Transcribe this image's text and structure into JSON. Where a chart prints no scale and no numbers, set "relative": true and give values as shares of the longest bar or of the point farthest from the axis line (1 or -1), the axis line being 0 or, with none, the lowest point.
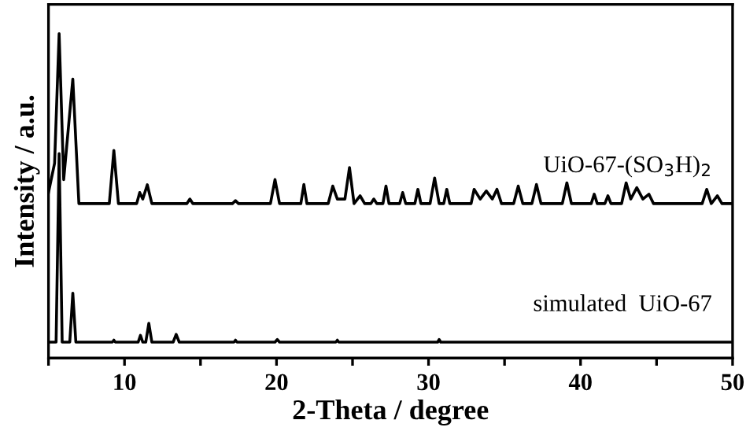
{
  "chart_data": {
    "type": "line",
    "relative": true,
    "xlabel": "2-Theta / degree",
    "ylabel": "Intensity / a.u.",
    "xlim": [
      5,
      50
    ],
    "xticks": [
      {
        "value": 5,
        "label": null
      },
      10,
      {
        "value": 15,
        "label": null
      },
      20,
      {
        "value": 25,
        "label": null
      },
      30,
      {
        "value": 35,
        "label": null
      },
      40,
      {
        "value": 45,
        "label": null
      },
      50
    ],
    "tick_labels": "x",
    "grid": false,
    "legend": false,
    "marker": "none",
    "line_style": "solid",
    "series": [
      {
        "name": "UiO-67-(SO$_{3}$H)$_{2}$",
        "color": "#000000",
        "x": [
          5,
          5.4,
          5.7,
          6.0,
          6.6,
          7.0,
          9.0,
          9.3,
          9.6,
          10.8,
          11.0,
          11.2,
          11.5,
          11.8,
          14.1,
          14.3,
          14.5,
          17.1,
          17.3,
          17.5,
          19.6,
          19.9,
          20.2,
          21.6,
          21.8,
          22.0,
          23.4,
          23.7,
          24.0,
          24.5,
          24.8,
          25.1,
          25.5,
          25.8,
          26.2,
          26.4,
          26.6,
          27.0,
          27.2,
          27.4,
          28.1,
          28.3,
          28.5,
          29.1,
          29.3,
          29.5,
          30.1,
          30.4,
          30.7,
          31.0,
          31.2,
          31.4,
          32.8,
          33.0,
          33.4,
          33.8,
          34.2,
          34.5,
          34.8,
          35.6,
          35.9,
          36.2,
          36.8,
          37.1,
          37.4,
          38.8,
          39.1,
          39.4,
          40.7,
          40.9,
          41.1,
          41.6,
          41.8,
          42.0,
          42.7,
          43.0,
          43.3,
          43.7,
          44.1,
          44.5,
          44.8,
          48.0,
          48.3,
          48.6,
          49.0,
          49.3,
          50
        ],
        "values": [
          0.51,
          0.6,
          1.0,
          0.55,
          0.86,
          0.476,
          0.476,
          0.64,
          0.476,
          0.476,
          0.51,
          0.49,
          0.534,
          0.476,
          0.476,
          0.49,
          0.476,
          0.476,
          0.485,
          0.476,
          0.476,
          0.55,
          0.476,
          0.476,
          0.535,
          0.476,
          0.476,
          0.53,
          0.49,
          0.49,
          0.587,
          0.476,
          0.5,
          0.476,
          0.476,
          0.49,
          0.476,
          0.476,
          0.53,
          0.476,
          0.476,
          0.51,
          0.476,
          0.476,
          0.52,
          0.476,
          0.476,
          0.555,
          0.476,
          0.476,
          0.52,
          0.476,
          0.476,
          0.52,
          0.49,
          0.515,
          0.49,
          0.52,
          0.476,
          0.476,
          0.53,
          0.476,
          0.476,
          0.535,
          0.476,
          0.476,
          0.54,
          0.476,
          0.476,
          0.505,
          0.476,
          0.476,
          0.5,
          0.476,
          0.476,
          0.54,
          0.49,
          0.525,
          0.49,
          0.505,
          0.476,
          0.476,
          0.52,
          0.476,
          0.5,
          0.476,
          0.476
        ]
      },
      {
        "name": "simulated  UiO-67",
        "color": "#000000",
        "x": [
          5,
          5.5,
          5.7,
          5.9,
          6.4,
          6.6,
          6.8,
          9.2,
          9.3,
          9.4,
          10.9,
          11.05,
          11.2,
          11.4,
          11.6,
          11.8,
          13.2,
          13.4,
          13.6,
          17.2,
          17.3,
          17.4,
          19.9,
          20.05,
          20.2,
          23.9,
          24.0,
          24.1,
          30.6,
          30.7,
          30.8,
          50
        ],
        "values": [
          0.049,
          0.049,
          0.63,
          0.049,
          0.049,
          0.2,
          0.049,
          0.049,
          0.055,
          0.049,
          0.049,
          0.07,
          0.049,
          0.049,
          0.107,
          0.049,
          0.049,
          0.073,
          0.049,
          0.049,
          0.055,
          0.049,
          0.049,
          0.057,
          0.049,
          0.049,
          0.055,
          0.049,
          0.049,
          0.057,
          0.049,
          0.049
        ]
      }
    ]
  }
}
